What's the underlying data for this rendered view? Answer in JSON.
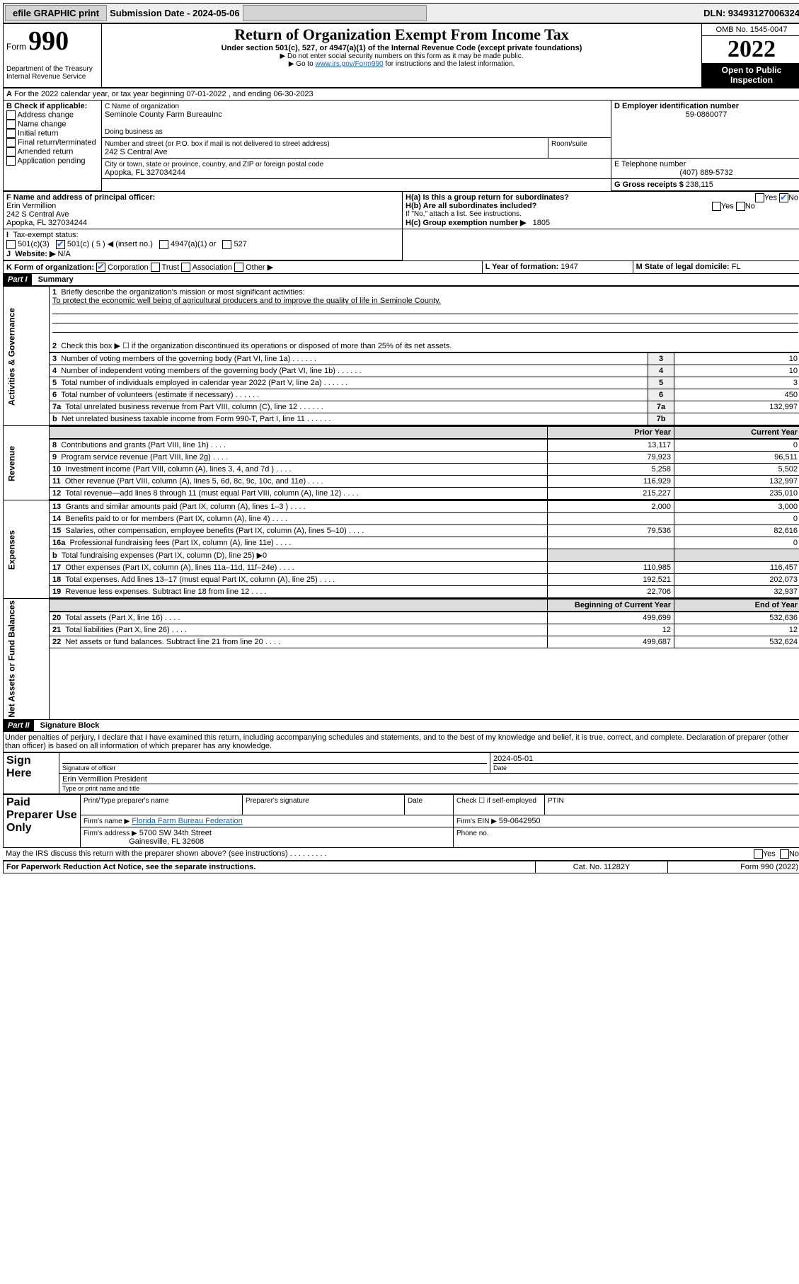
{
  "topbar": {
    "efile": "efile GRAPHIC print",
    "submission_label": "Submission Date - 2024-05-06",
    "dln_label": "DLN: 93493127006324"
  },
  "header": {
    "form_word": "Form",
    "form_number": "990",
    "title": "Return of Organization Exempt From Income Tax",
    "subtitle": "Under section 501(c), 527, or 4947(a)(1) of the Internal Revenue Code (except private foundations)",
    "notice1": "▶ Do not enter social security numbers on this form as it may be made public.",
    "notice2_pre": "▶ Go to ",
    "notice2_link": "www.irs.gov/Form990",
    "notice2_post": " for instructions and the latest information.",
    "dept": "Department of the Treasury",
    "irs": "Internal Revenue Service",
    "omb": "OMB No. 1545-0047",
    "year": "2022",
    "open_public": "Open to Public Inspection"
  },
  "sectionA": {
    "line": "For the 2022 calendar year, or tax year beginning 07-01-2022 , and ending 06-30-2023",
    "b_label": "B Check if applicable:",
    "b_opts": [
      "Address change",
      "Name change",
      "Initial return",
      "Final return/terminated",
      "Amended return",
      "Application pending"
    ],
    "c_label": "C Name of organization",
    "c_name": "Seminole County Farm BureauInc",
    "dba_label": "Doing business as",
    "addr_label": "Number and street (or P.O. box if mail is not delivered to street address)",
    "room_label": "Room/suite",
    "addr": "242 S Central Ave",
    "city_label": "City or town, state or province, country, and ZIP or foreign postal code",
    "city": "Apopka, FL  327034244",
    "d_label": "D Employer identification number",
    "d_val": "59-0860077",
    "e_label": "E Telephone number",
    "e_val": "(407) 889-5732",
    "g_label": "G Gross receipts $",
    "g_val": "238,115",
    "f_label": "F Name and address of principal officer:",
    "f_name": "Erin Vermillion",
    "f_addr1": "242 S Central Ave",
    "f_addr2": "Apopka, FL  327034244",
    "ha_label": "H(a) Is this a group return for subordinates?",
    "hb_label": "H(b) Are all subordinates included?",
    "h_note": "If \"No,\" attach a list. See instructions.",
    "hc_label": "H(c) Group exemption number ▶",
    "hc_val": "1805",
    "yes": "Yes",
    "no": "No",
    "i_label": "Tax-exempt status:",
    "i_501c3": "501(c)(3)",
    "i_501c": "501(c) ( 5 ) ◀ (insert no.)",
    "i_4947": "4947(a)(1) or",
    "i_527": "527",
    "j_label": "Website: ▶",
    "j_val": "N/A",
    "k_label": "K Form of organization:",
    "k_opts": [
      "Corporation",
      "Trust",
      "Association",
      "Other ▶"
    ],
    "l_label": "L Year of formation:",
    "l_val": "1947",
    "m_label": "M State of legal domicile:",
    "m_val": "FL"
  },
  "part1": {
    "header": "Part I",
    "title": "Summary",
    "q1_label": "Briefly describe the organization's mission or most significant activities:",
    "q1_text": "To protect the economic well being of agricultural producers and to improve the quality of life in Seminole County.",
    "q2": "Check this box ▶ ☐ if the organization discontinued its operations or disposed of more than 25% of its net assets.",
    "lines_gov": [
      {
        "n": "3",
        "t": "Number of voting members of the governing body (Part VI, line 1a)",
        "box": "3",
        "v": "10"
      },
      {
        "n": "4",
        "t": "Number of independent voting members of the governing body (Part VI, line 1b)",
        "box": "4",
        "v": "10"
      },
      {
        "n": "5",
        "t": "Total number of individuals employed in calendar year 2022 (Part V, line 2a)",
        "box": "5",
        "v": "3"
      },
      {
        "n": "6",
        "t": "Total number of volunteers (estimate if necessary)",
        "box": "6",
        "v": "450"
      },
      {
        "n": "7a",
        "t": "Total unrelated business revenue from Part VIII, column (C), line 12",
        "box": "7a",
        "v": "132,997"
      },
      {
        "n": "b",
        "t": "Net unrelated business taxable income from Form 990-T, Part I, line 11",
        "box": "7b",
        "v": ""
      }
    ],
    "prior_label": "Prior Year",
    "current_label": "Current Year",
    "rev_lines": [
      {
        "n": "8",
        "t": "Contributions and grants (Part VIII, line 1h)",
        "p": "13,117",
        "c": "0"
      },
      {
        "n": "9",
        "t": "Program service revenue (Part VIII, line 2g)",
        "p": "79,923",
        "c": "96,511"
      },
      {
        "n": "10",
        "t": "Investment income (Part VIII, column (A), lines 3, 4, and 7d )",
        "p": "5,258",
        "c": "5,502"
      },
      {
        "n": "11",
        "t": "Other revenue (Part VIII, column (A), lines 5, 6d, 8c, 9c, 10c, and 11e)",
        "p": "116,929",
        "c": "132,997"
      },
      {
        "n": "12",
        "t": "Total revenue—add lines 8 through 11 (must equal Part VIII, column (A), line 12)",
        "p": "215,227",
        "c": "235,010"
      }
    ],
    "exp_lines": [
      {
        "n": "13",
        "t": "Grants and similar amounts paid (Part IX, column (A), lines 1–3 )",
        "p": "2,000",
        "c": "3,000"
      },
      {
        "n": "14",
        "t": "Benefits paid to or for members (Part IX, column (A), line 4)",
        "p": "",
        "c": "0"
      },
      {
        "n": "15",
        "t": "Salaries, other compensation, employee benefits (Part IX, column (A), lines 5–10)",
        "p": "79,536",
        "c": "82,616"
      },
      {
        "n": "16a",
        "t": "Professional fundraising fees (Part IX, column (A), line 11e)",
        "p": "",
        "c": "0"
      },
      {
        "n": "b",
        "t": "Total fundraising expenses (Part IX, column (D), line 25) ▶0",
        "p": "—",
        "c": "—"
      },
      {
        "n": "17",
        "t": "Other expenses (Part IX, column (A), lines 11a–11d, 11f–24e)",
        "p": "110,985",
        "c": "116,457"
      },
      {
        "n": "18",
        "t": "Total expenses. Add lines 13–17 (must equal Part IX, column (A), line 25)",
        "p": "192,521",
        "c": "202,073"
      },
      {
        "n": "19",
        "t": "Revenue less expenses. Subtract line 18 from line 12",
        "p": "22,706",
        "c": "32,937"
      }
    ],
    "begin_label": "Beginning of Current Year",
    "end_label": "End of Year",
    "net_lines": [
      {
        "n": "20",
        "t": "Total assets (Part X, line 16)",
        "p": "499,699",
        "c": "532,636"
      },
      {
        "n": "21",
        "t": "Total liabilities (Part X, line 26)",
        "p": "12",
        "c": "12"
      },
      {
        "n": "22",
        "t": "Net assets or fund balances. Subtract line 21 from line 20",
        "p": "499,687",
        "c": "532,624"
      }
    ],
    "vlabels": {
      "gov": "Activities & Governance",
      "rev": "Revenue",
      "exp": "Expenses",
      "net": "Net Assets or Fund Balances"
    }
  },
  "part2": {
    "header": "Part II",
    "title": "Signature Block",
    "decl": "Under penalties of perjury, I declare that I have examined this return, including accompanying schedules and statements, and to the best of my knowledge and belief, it is true, correct, and complete. Declaration of preparer (other than officer) is based on all information of which preparer has any knowledge.",
    "sign_here": "Sign Here",
    "sig_officer": "Signature of officer",
    "date_label": "Date",
    "date_val": "2024-05-01",
    "print_name": "Erin Vermillion  President",
    "print_label": "Type or print name and title",
    "paid": "Paid Preparer Use Only",
    "prep_name_label": "Print/Type preparer's name",
    "prep_sig_label": "Preparer's signature",
    "check_if": "Check ☐ if self-employed",
    "ptin": "PTIN",
    "firm_name_label": "Firm's name ▶",
    "firm_name": "Florida Farm Bureau Federation",
    "firm_ein_label": "Firm's EIN ▶",
    "firm_ein": "59-0642950",
    "firm_addr_label": "Firm's address ▶",
    "firm_addr1": "5700 SW 34th Street",
    "firm_addr2": "Gainesville, FL  32608",
    "phone_label": "Phone no.",
    "discuss": "May the IRS discuss this return with the preparer shown above? (see instructions)",
    "paperwork": "For Paperwork Reduction Act Notice, see the separate instructions.",
    "catno": "Cat. No. 11282Y",
    "formno": "Form 990 (2022)"
  }
}
